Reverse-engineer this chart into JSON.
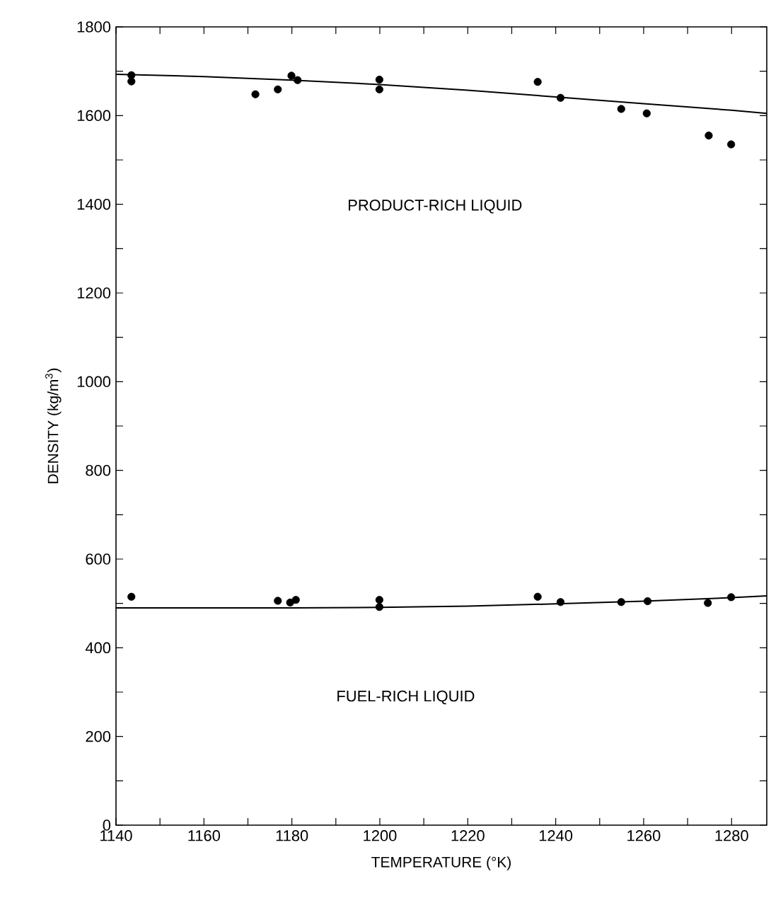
{
  "chart_data": {
    "type": "scatter",
    "xlabel": "TEMPERATURE (°K)",
    "ylabel": "DENSITY (kg/m$^{3}$)",
    "xlim": [
      1140,
      1288
    ],
    "ylim": [
      0,
      1800
    ],
    "xticks": [
      1140,
      {
        "value": 1150,
        "label": null
      },
      1160,
      {
        "value": 1170,
        "label": null
      },
      1180,
      {
        "value": 1190,
        "label": null
      },
      1200,
      {
        "value": 1210,
        "label": null
      },
      1220,
      {
        "value": 1230,
        "label": null
      },
      1240,
      {
        "value": 1250,
        "label": null
      },
      1260,
      {
        "value": 1270,
        "label": null
      },
      1280
    ],
    "yticks": [
      0,
      {
        "value": 100,
        "label": null
      },
      200,
      {
        "value": 300,
        "label": null
      },
      400,
      {
        "value": 500,
        "label": null
      },
      600,
      {
        "value": 700,
        "label": null
      },
      800,
      {
        "value": 900,
        "label": null
      },
      1000,
      {
        "value": 1100,
        "label": null
      },
      1200,
      {
        "value": 1300,
        "label": null
      },
      1400,
      {
        "value": 1500,
        "label": null
      },
      1600,
      {
        "value": 1700,
        "label": null
      },
      1800
    ],
    "marker": "circle",
    "grid": false,
    "series": [
      {
        "color": "#000000",
        "x": [
          1143.5,
          1143.5,
          1171.7,
          1176.8,
          1179.9,
          1181.3,
          1199.9,
          1199.9,
          1235.9,
          1241.1,
          1254.9,
          1260.7,
          1274.8,
          1279.9
        ],
        "values": [
          1677,
          1691,
          1648,
          1659,
          1690,
          1680,
          1681,
          1659,
          1676,
          1640,
          1615,
          1605,
          1555,
          1535
        ]
      },
      {
        "type": "line",
        "color": "#000000",
        "marker": "none",
        "line_style": "solid",
        "x": [
          1140,
          1160,
          1180,
          1200,
          1220,
          1240,
          1260,
          1280,
          1288
        ],
        "values": [
          1693,
          1688,
          1680,
          1670,
          1657,
          1642,
          1627,
          1612,
          1605
        ]
      },
      {
        "color": "#000000",
        "x": [
          1143.5,
          1176.8,
          1179.6,
          1180.9,
          1199.9,
          1199.9,
          1235.9,
          1241.1,
          1254.9,
          1260.9,
          1274.6,
          1279.9
        ],
        "values": [
          515,
          506,
          502,
          508,
          508,
          492,
          515,
          503,
          503,
          505,
          501,
          514
        ]
      },
      {
        "type": "line",
        "color": "#000000",
        "marker": "none",
        "line_style": "solid",
        "x": [
          1140,
          1180,
          1200,
          1220,
          1240,
          1260,
          1280,
          1288
        ],
        "values": [
          490,
          490,
          491,
          494,
          499,
          505,
          513,
          517
        ]
      }
    ],
    "annotations": [
      "PRODUCT-RICH LIQUID",
      "FUEL-RICH LIQUID"
    ]
  }
}
